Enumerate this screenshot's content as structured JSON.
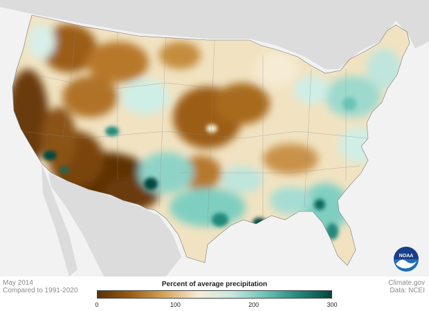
{
  "footer": {
    "left_line1": "May 2014",
    "left_line2": "Compared to 1991-2020",
    "right_line1": "Climate.gov",
    "right_line2": "Data: NCEI"
  },
  "legend": {
    "title": "Percent of average precipitation",
    "ticks": [
      "0",
      "100",
      "200",
      "300"
    ],
    "tick_values": [
      0,
      100,
      200,
      300
    ],
    "range": [
      0,
      300
    ],
    "colors": [
      "#5a3105",
      "#9c5d12",
      "#d6a55a",
      "#f6ecd4",
      "#c8e8e0",
      "#6cc4b6",
      "#22897c",
      "#03463f"
    ]
  },
  "logo": {
    "text": "NOAA"
  },
  "colors": {
    "background": "#f2f2f2",
    "land_outside": "#dcdcdc",
    "very_dry": "#6b3b08",
    "dry": "#b7782b",
    "near_normal": "#f4ead2",
    "wet": "#8fd3c7",
    "very_wet": "#03463f"
  }
}
